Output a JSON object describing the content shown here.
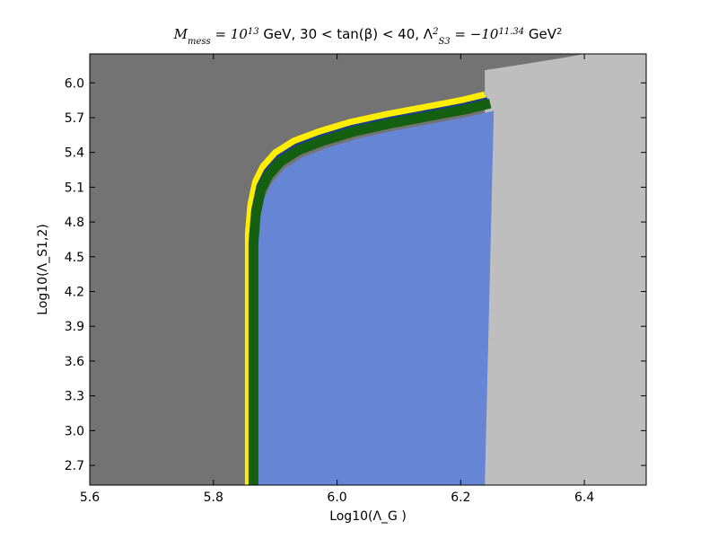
{
  "chart_data": {
    "type": "region-map",
    "title": {
      "parts": [
        {
          "t": "M",
          "cls": "math"
        },
        {
          "t": "mess",
          "cls": "math",
          "sub": true
        },
        {
          "t": " = 10",
          "cls": "math"
        },
        {
          "t": "13",
          "cls": "math",
          "sup": true
        },
        {
          "t": "  GeV, 30 < tan(β) < 40, Λ",
          "cls": ""
        },
        {
          "t": "2",
          "cls": "math",
          "sup": true
        },
        {
          "t": "S3",
          "cls": "math",
          "sub": true
        },
        {
          "t": " = −10",
          "cls": "math"
        },
        {
          "t": "11.34",
          "cls": "math",
          "sup": true
        },
        {
          "t": "  GeV",
          "cls": ""
        },
        {
          "t": "2",
          "cls": "",
          "sup": true
        }
      ],
      "plain": "M_mess = 10^13 GeV, 30 < tan(β) < 40, Λ^2_S3 = −10^11.34 GeV^2"
    },
    "xlabel": "Log10(Λ_G )",
    "ylabel": "Log10(Λ_S1,2)",
    "xlim": [
      5.6,
      6.5
    ],
    "ylim": [
      2.53,
      6.25
    ],
    "xticks": [
      "5.6",
      "5.8",
      "6.0",
      "6.2",
      "6.4"
    ],
    "yticks": [
      "2.7",
      "3.0",
      "3.3",
      "3.6",
      "3.9",
      "4.2",
      "4.5",
      "4.8",
      "5.1",
      "5.4",
      "5.7",
      "6.0"
    ],
    "colors": {
      "excluded_left": "#737373",
      "excluded_right": "#bebebe",
      "allowed": "#6685d4",
      "band_dark_blue": "#1a3f8e",
      "band_yellow": "#ffee00",
      "band_green": "#156010"
    },
    "regions": [
      {
        "name": "excluded-left",
        "color_key": "excluded_left"
      },
      {
        "name": "excluded-right",
        "color_key": "excluded_right"
      },
      {
        "name": "allowed",
        "color_key": "allowed"
      },
      {
        "name": "yellow-band",
        "color_key": "band_yellow"
      },
      {
        "name": "dark-blue-band",
        "color_key": "band_dark_blue"
      },
      {
        "name": "green-band",
        "color_key": "band_green"
      }
    ],
    "boundary_curve": [
      [
        5.856,
        2.53
      ],
      [
        5.856,
        4.7
      ],
      [
        5.86,
        4.95
      ],
      [
        5.868,
        5.15
      ],
      [
        5.88,
        5.28
      ],
      [
        5.9,
        5.4
      ],
      [
        5.93,
        5.5
      ],
      [
        5.97,
        5.58
      ],
      [
        6.02,
        5.66
      ],
      [
        6.08,
        5.73
      ],
      [
        6.14,
        5.79
      ],
      [
        6.2,
        5.85
      ],
      [
        6.239,
        5.9
      ]
    ],
    "right_edge_x": 6.239,
    "grey_top_curve": [
      [
        6.239,
        6.11
      ],
      [
        6.3,
        6.16
      ],
      [
        6.37,
        6.22
      ],
      [
        6.4,
        6.25
      ]
    ],
    "grid": false
  }
}
